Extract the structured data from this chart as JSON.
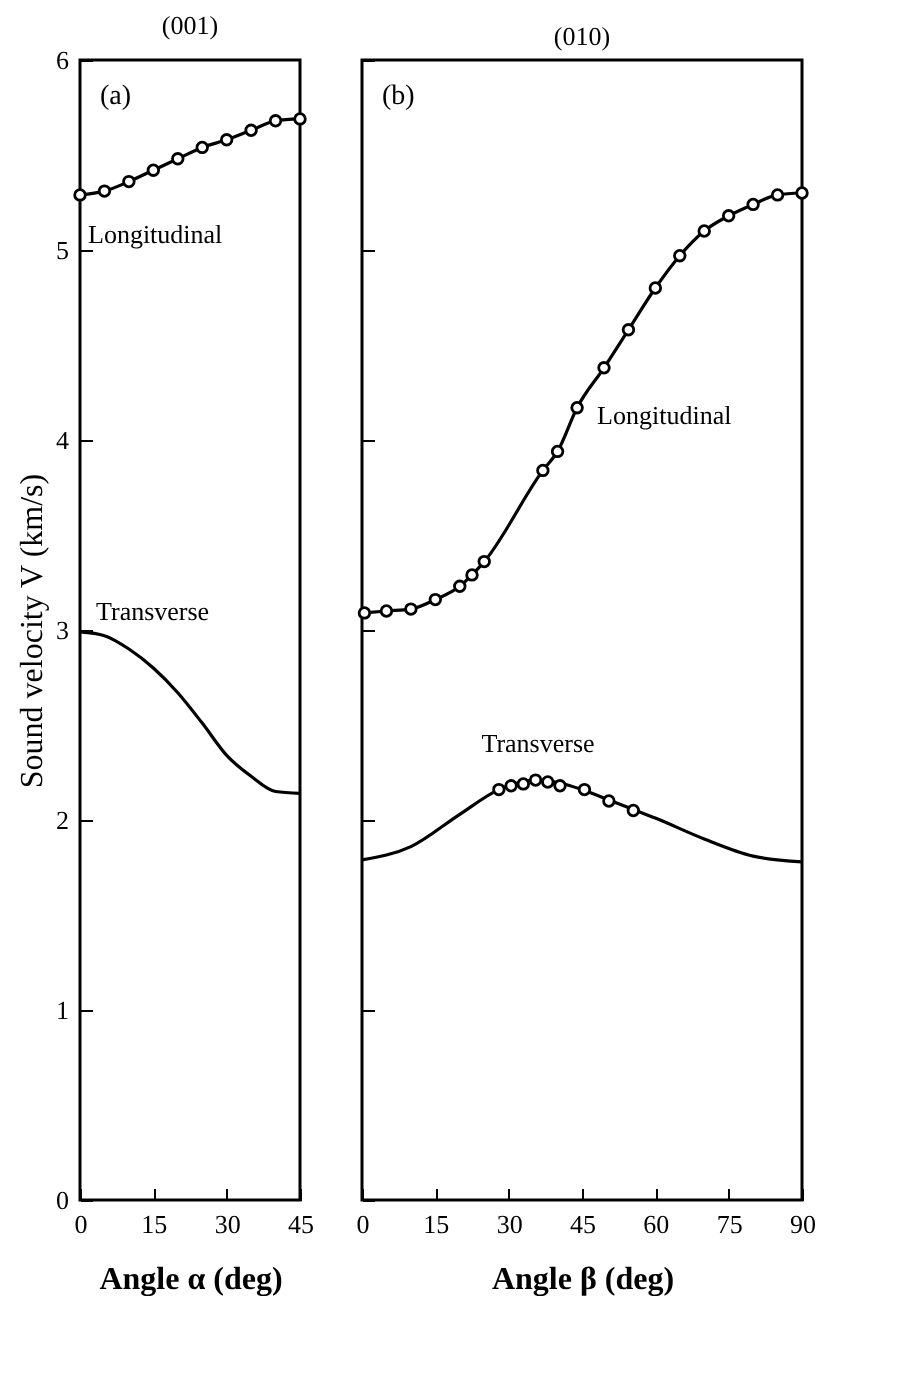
{
  "chart_data": [
    {
      "type": "line",
      "title": "(001)",
      "xlabel": "Angle α (deg)",
      "ylabel": "Sound velocity V (km/s)",
      "annotations": [
        "(a)"
      ],
      "xlim": [
        0,
        45
      ],
      "xticks": [
        0,
        15,
        30,
        45
      ],
      "ylim": [
        0,
        6
      ],
      "yticks": [
        0,
        1,
        2,
        3,
        4,
        5,
        6
      ],
      "grid": false,
      "line_style": "solid",
      "series": [
        {
          "name": "Longitudinal",
          "color": "#000000",
          "marker": "circle",
          "x": [
            0,
            5,
            10,
            15,
            20,
            25,
            30,
            35,
            40,
            45
          ],
          "values": [
            5.29,
            5.31,
            5.36,
            5.42,
            5.48,
            5.54,
            5.58,
            5.63,
            5.68,
            5.69
          ]
        },
        {
          "name": "Transverse",
          "color": "#000000",
          "marker": "none",
          "x": [
            0,
            5,
            10,
            15,
            20,
            25,
            30,
            35,
            40,
            45
          ],
          "values": [
            2.99,
            2.97,
            2.9,
            2.8,
            2.67,
            2.51,
            2.34,
            2.23,
            2.15,
            2.14
          ]
        }
      ]
    },
    {
      "type": "line",
      "title": "(010)",
      "xlabel": "Angle β (deg)",
      "annotations": [
        "(b)"
      ],
      "xlim": [
        0,
        90
      ],
      "xticks": [
        0,
        15,
        30,
        45,
        60,
        75,
        90
      ],
      "ylim": [
        0,
        6
      ],
      "yticks": [
        0,
        1,
        2,
        3,
        4,
        5,
        6
      ],
      "grid": false,
      "tick_labels": "x",
      "line_style": "solid",
      "series": [
        {
          "name": "Longitudinal",
          "color": "#000000",
          "marker": "circle",
          "x": [
            0.5,
            5,
            10,
            15,
            20,
            22.5,
            25,
            37,
            40,
            44,
            49.5,
            54.5,
            60,
            65,
            70,
            75,
            80,
            85,
            90
          ],
          "values": [
            3.09,
            3.1,
            3.11,
            3.16,
            3.23,
            3.29,
            3.36,
            3.84,
            3.94,
            4.17,
            4.38,
            4.58,
            4.8,
            4.97,
            5.1,
            5.18,
            5.24,
            5.29,
            5.3
          ]
        },
        {
          "name": "Transverse",
          "color": "#000000",
          "marker": "none",
          "x": [
            0,
            10,
            20,
            28,
            36,
            45,
            50,
            55,
            60,
            70,
            80,
            90
          ],
          "values": [
            1.79,
            1.86,
            2.03,
            2.16,
            2.21,
            2.16,
            2.11,
            2.06,
            2.01,
            1.9,
            1.81,
            1.78
          ]
        },
        {
          "type": "scatter",
          "color": "#000000",
          "marker": "circle",
          "x": [
            28,
            30.5,
            33,
            35.5,
            38,
            40.5,
            45.5,
            50.5,
            55.5
          ],
          "values": [
            2.16,
            2.18,
            2.19,
            2.21,
            2.2,
            2.18,
            2.16,
            2.1,
            2.05
          ]
        }
      ]
    }
  ]
}
